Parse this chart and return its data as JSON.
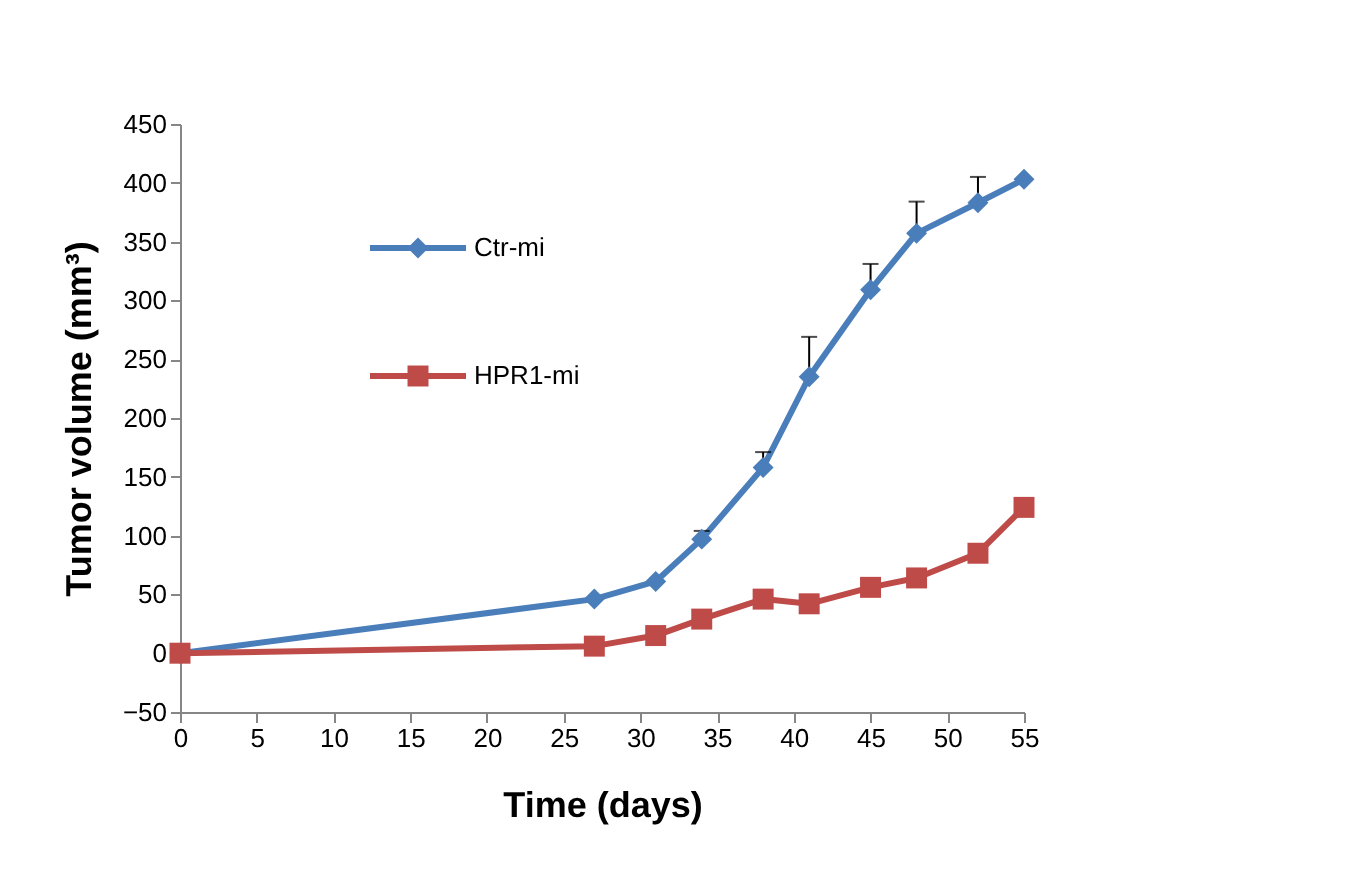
{
  "chart_data": {
    "type": "line",
    "xlabel": "Time (days)",
    "ylabel": "Tumor volume (mm³)",
    "x": [
      0,
      27,
      31,
      34,
      38,
      41,
      45,
      48,
      52,
      55
    ],
    "series": [
      {
        "name": "Ctr-mi",
        "color": "#4a7ebb",
        "marker": "diamond",
        "values": [
          0,
          46,
          61,
          97,
          158,
          235,
          309,
          357,
          383,
          403
        ],
        "errors": [
          null,
          null,
          null,
          [
            97,
            104
          ],
          [
            158,
            171
          ],
          [
            235,
            269
          ],
          [
            309,
            331
          ],
          [
            357,
            384
          ],
          [
            383,
            405
          ],
          null
        ]
      },
      {
        "name": "HPR1-mi",
        "color": "#be4b48",
        "marker": "square",
        "values": [
          0,
          6,
          15,
          29,
          46,
          42,
          56,
          64,
          85,
          124
        ]
      }
    ],
    "xlim": [
      0,
      55
    ],
    "xticks": [
      0,
      5,
      10,
      15,
      20,
      25,
      30,
      35,
      40,
      45,
      50,
      55
    ],
    "ylim": [
      -50,
      450
    ],
    "yticks": [
      -50,
      0,
      50,
      100,
      150,
      200,
      250,
      300,
      350,
      400,
      450
    ],
    "grid": false,
    "legend": "top left",
    "line_style": "solid"
  }
}
